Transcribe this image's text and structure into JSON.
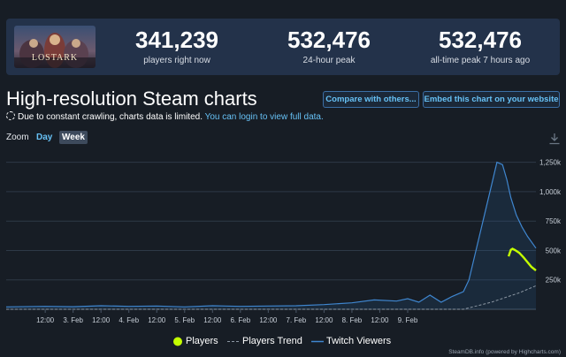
{
  "stats": {
    "players_now": {
      "value": "341,239",
      "label": "players right now"
    },
    "peak_24h": {
      "value": "532,476",
      "label": "24-hour peak"
    },
    "all_time": {
      "value": "532,476",
      "label": "all-time peak 7 hours ago"
    },
    "logo_text": "LOSTARK"
  },
  "header": {
    "title": "High-resolution Steam charts",
    "compare_button": "Compare with others...",
    "embed_button": "Embed this chart on your website"
  },
  "notice": {
    "text": "Due to constant crawling, charts data is limited.",
    "link": "You can login to view full data."
  },
  "zoom": {
    "label": "Zoom",
    "day": "Day",
    "week": "Week"
  },
  "icons": {
    "download": "download-icon",
    "notice": "dashed-circle-icon"
  },
  "colors": {
    "players": "#c4ff00",
    "twitch": "#3f86cf",
    "trend": "#8c97a3",
    "link": "#67c1f5"
  },
  "chart_data": {
    "type": "line",
    "y_ticks": [
      "250k",
      "500k",
      "750k",
      "1,000k",
      "1,250k"
    ],
    "y_tick_values": [
      250000,
      500000,
      750000,
      1000000,
      1250000
    ],
    "ylim": [
      0,
      1330000
    ],
    "x_ticks": [
      "12:00",
      "3. Feb",
      "12:00",
      "4. Feb",
      "12:00",
      "5. Feb",
      "12:00",
      "6. Feb",
      "12:00",
      "7. Feb",
      "12:00",
      "8. Feb",
      "12:00",
      "9. Feb"
    ],
    "grid": true,
    "legend_position": "bottom",
    "series": [
      {
        "name": "Players",
        "x": [
          0.81,
          0.85,
          0.88,
          0.92,
          1.0,
          1.08,
          1.15,
          1.22,
          1.3
        ],
        "y": [
          450000,
          505000,
          515000,
          505000,
          480000,
          440000,
          400000,
          360000,
          330000
        ]
      },
      {
        "name": "Players Trend",
        "x": [
          -8.2,
          -4.0,
          0.0,
          0.5,
          1.0,
          1.3
        ],
        "y": [
          0,
          0,
          0,
          60000,
          140000,
          200000
        ]
      },
      {
        "name": "Twitch Viewers",
        "x": [
          -8.2,
          -7.5,
          -7.0,
          -6.5,
          -6.0,
          -5.5,
          -5.0,
          -4.5,
          -4.0,
          -3.5,
          -3.0,
          -2.5,
          -2.0,
          -1.6,
          -1.2,
          -1.0,
          -0.8,
          -0.6,
          -0.4,
          -0.2,
          0.0,
          0.1,
          0.2,
          0.35,
          0.5,
          0.6,
          0.7,
          0.78,
          0.85,
          0.95,
          1.05,
          1.15,
          1.3
        ],
        "y": [
          20000,
          25000,
          22000,
          30000,
          25000,
          28000,
          20000,
          30000,
          25000,
          28000,
          30000,
          40000,
          55000,
          80000,
          70000,
          90000,
          60000,
          120000,
          60000,
          110000,
          150000,
          250000,
          450000,
          750000,
          1050000,
          1250000,
          1230000,
          1100000,
          950000,
          800000,
          700000,
          620000,
          520000
        ]
      }
    ]
  },
  "footer": {
    "credit": "SteamDB.info (powered by Highcharts.com)"
  }
}
